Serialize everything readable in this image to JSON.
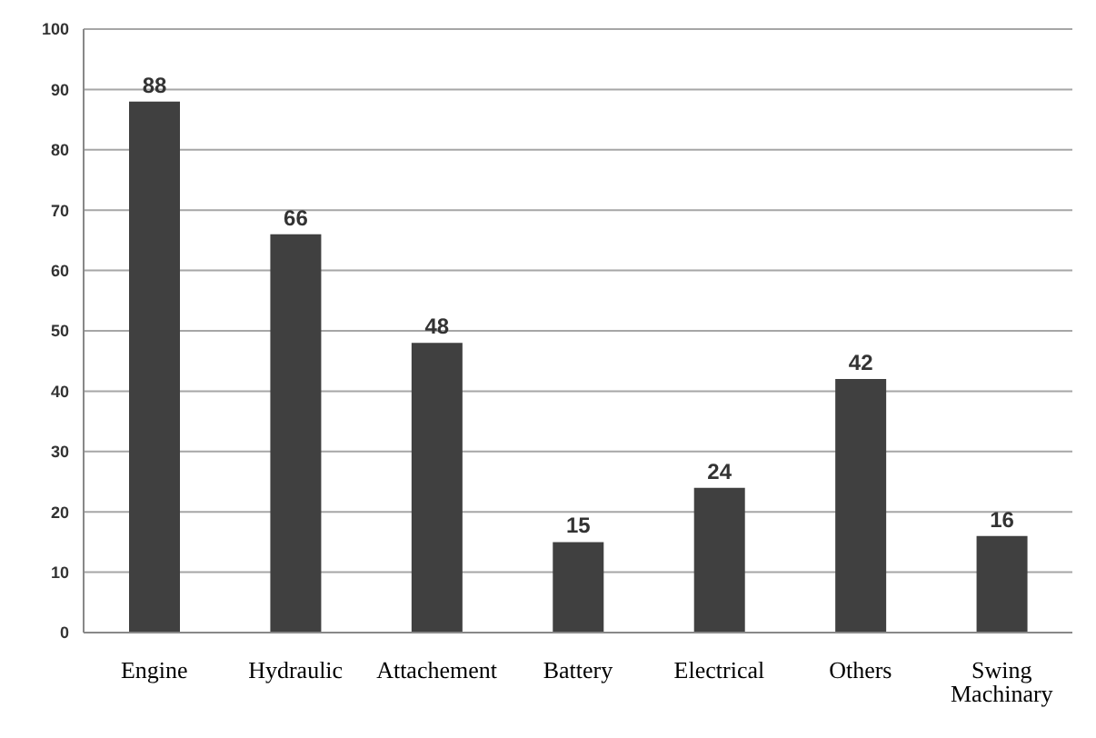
{
  "chart_data": {
    "type": "bar",
    "categories": [
      "Engine",
      "Hydraulic",
      "Attachement",
      "Battery",
      "Electrical",
      "Others",
      "Swing Machinary"
    ],
    "values": [
      88,
      66,
      48,
      15,
      24,
      42,
      16
    ],
    "color": "#404040",
    "ylim": [
      0,
      100
    ],
    "yticks": [
      0,
      10,
      20,
      30,
      40,
      50,
      60,
      70,
      80,
      90,
      100
    ],
    "grid": "y",
    "data_labels": true
  }
}
